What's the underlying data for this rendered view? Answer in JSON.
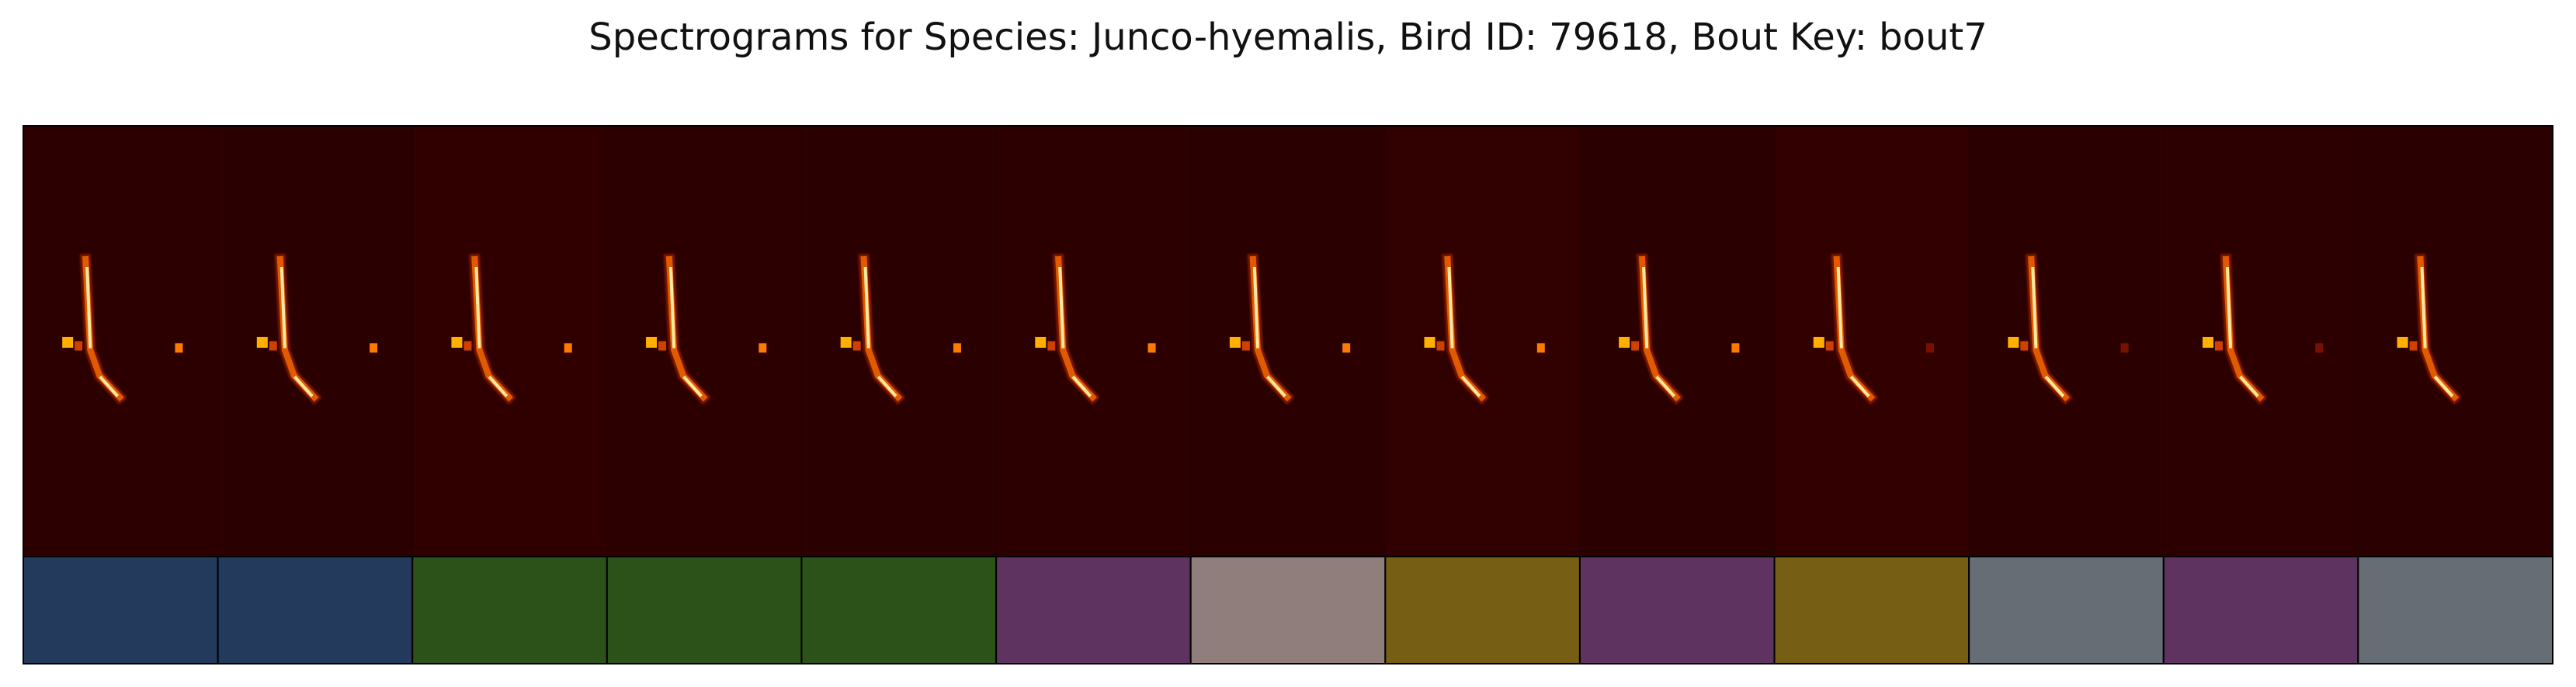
{
  "title": "Spectrograms for Species: Junco-hyemalis, Bird ID: 79618, Bout Key: bout7",
  "chart_data": {
    "type": "heatmap",
    "title": "Spectrograms for Species: Junco-hyemalis, Bird ID: 79618, Bout Key: bout7",
    "xlabel": "",
    "ylabel": "",
    "colormap": "afmhot",
    "background_color": "#2a0000",
    "syllable_count": 13,
    "label_bar_colors": [
      "#233a5c",
      "#233a5c",
      "#2d5219",
      "#2d5219",
      "#2d5219",
      "#5e335f",
      "#8f7e7c",
      "#765f14",
      "#5e335f",
      "#765f14",
      "#666d74",
      "#5e335f",
      "#666d74"
    ]
  }
}
